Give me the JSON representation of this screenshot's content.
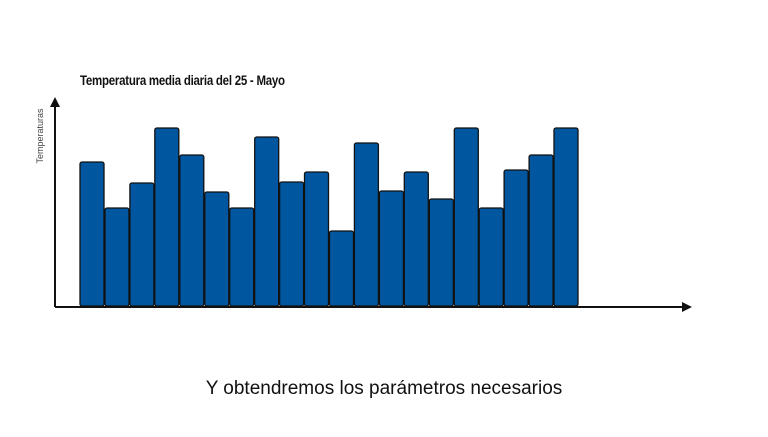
{
  "chart_data": {
    "type": "bar",
    "title": "Temperatura media diaria del 25 - Mayo",
    "xlabel": "",
    "ylabel": "Temperaturas",
    "values": [
      144,
      98,
      123,
      178,
      151,
      114,
      98,
      169,
      124,
      134,
      75,
      163,
      115,
      134,
      107,
      178,
      98,
      136,
      151,
      178
    ],
    "ylim": [
      0,
      200
    ],
    "grid": false,
    "legend": "none",
    "colors": {
      "bar_fill": "#0057a0",
      "bar_stroke": "#111111",
      "axis": "#111111"
    }
  },
  "caption": "Y obtendremos los parámetros necesarios"
}
